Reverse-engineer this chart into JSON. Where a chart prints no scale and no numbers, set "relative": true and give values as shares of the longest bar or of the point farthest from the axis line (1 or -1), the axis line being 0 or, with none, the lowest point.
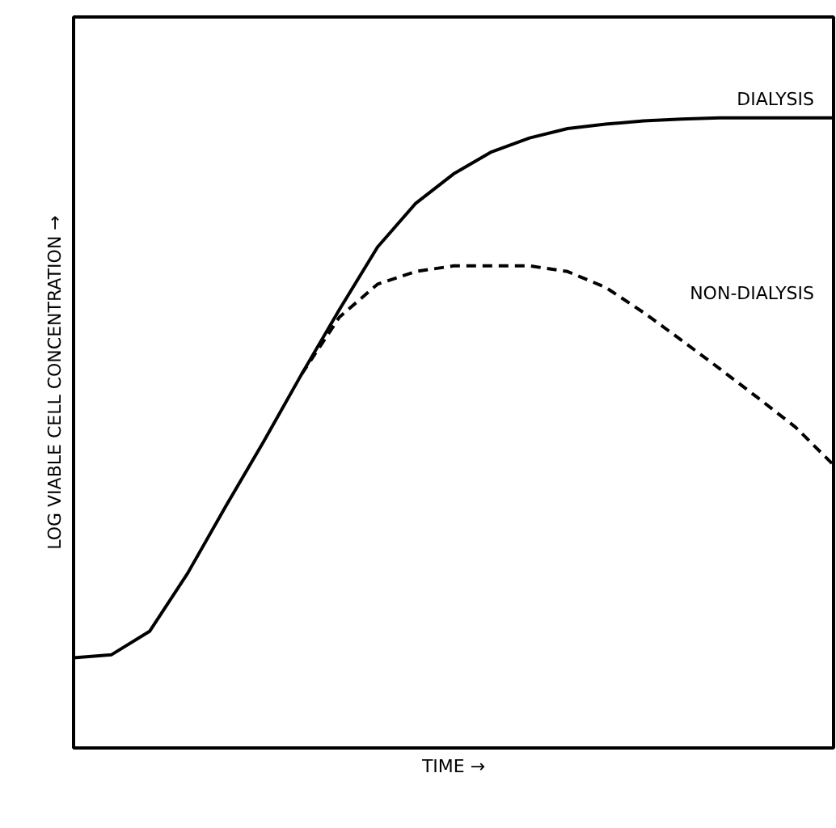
{
  "chart_data": {
    "type": "line",
    "relative": true,
    "xlabel": "TIME →",
    "ylabel": "LOG VIABLE CELL CONCENTRATION →",
    "categories": [
      null,
      null,
      null,
      null,
      null,
      null,
      null,
      null,
      null,
      null,
      null,
      null,
      null,
      null,
      null,
      null,
      null,
      null,
      null,
      null,
      null
    ],
    "series": [
      {
        "name": "DIALYSIS",
        "color": "#000000",
        "line_style": "solid",
        "values": [
          0.143,
          0.148,
          0.185,
          0.277,
          0.383,
          0.486,
          0.593,
          0.696,
          0.795,
          0.864,
          0.911,
          0.946,
          0.968,
          0.983,
          0.99,
          0.995,
          0.998,
          1.0,
          1.0,
          1.0,
          1.0
        ]
      },
      {
        "name": "NON-DIALYSIS",
        "color": "#000000",
        "line_style": "dashed",
        "values": [
          null,
          null,
          null,
          null,
          null,
          null,
          0.593,
          0.684,
          0.736,
          0.756,
          0.765,
          0.765,
          0.765,
          0.756,
          0.731,
          0.691,
          0.647,
          0.602,
          0.556,
          0.509,
          0.449
        ]
      }
    ]
  }
}
